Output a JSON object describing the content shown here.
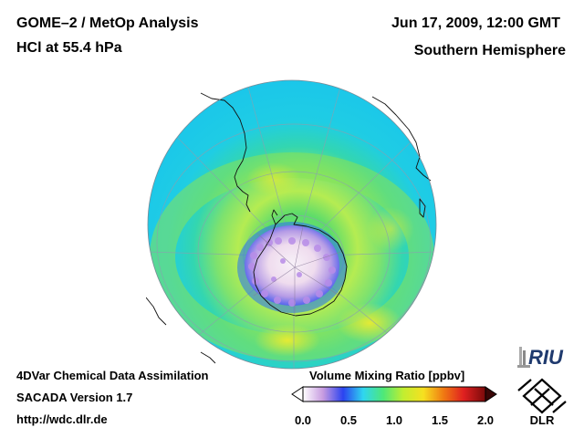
{
  "header": {
    "title_line1": "GOME–2 / MetOp Analysis",
    "title_line2": "HCl at 55.4 hPa",
    "date": "Jun 17, 2009, 12:00 GMT",
    "region": "Southern Hemisphere"
  },
  "footer": {
    "line1": "4DVar Chemical Data Assimilation",
    "line2": "SACADA Version 1.7",
    "line3": "http://wdc.dlr.de"
  },
  "colorbar": {
    "title": "Volume Mixing Ratio [ppbv]",
    "ticks": [
      "0.0",
      "0.5",
      "1.0",
      "1.5",
      "2.0"
    ],
    "range": [
      0.0,
      2.0
    ],
    "colors": [
      "#ffffff",
      "#c79be0",
      "#2b43f0",
      "#2fd6f0",
      "#4ee878",
      "#c2ee30",
      "#f6e020",
      "#f07a12",
      "#e02020",
      "#7a0a0a"
    ]
  },
  "logos": {
    "riu": "RIU",
    "dlr": "DLR"
  },
  "map": {
    "projection": "orthographic",
    "center": "South Pole",
    "quantity": "HCl",
    "level_hpa": 55.4
  }
}
